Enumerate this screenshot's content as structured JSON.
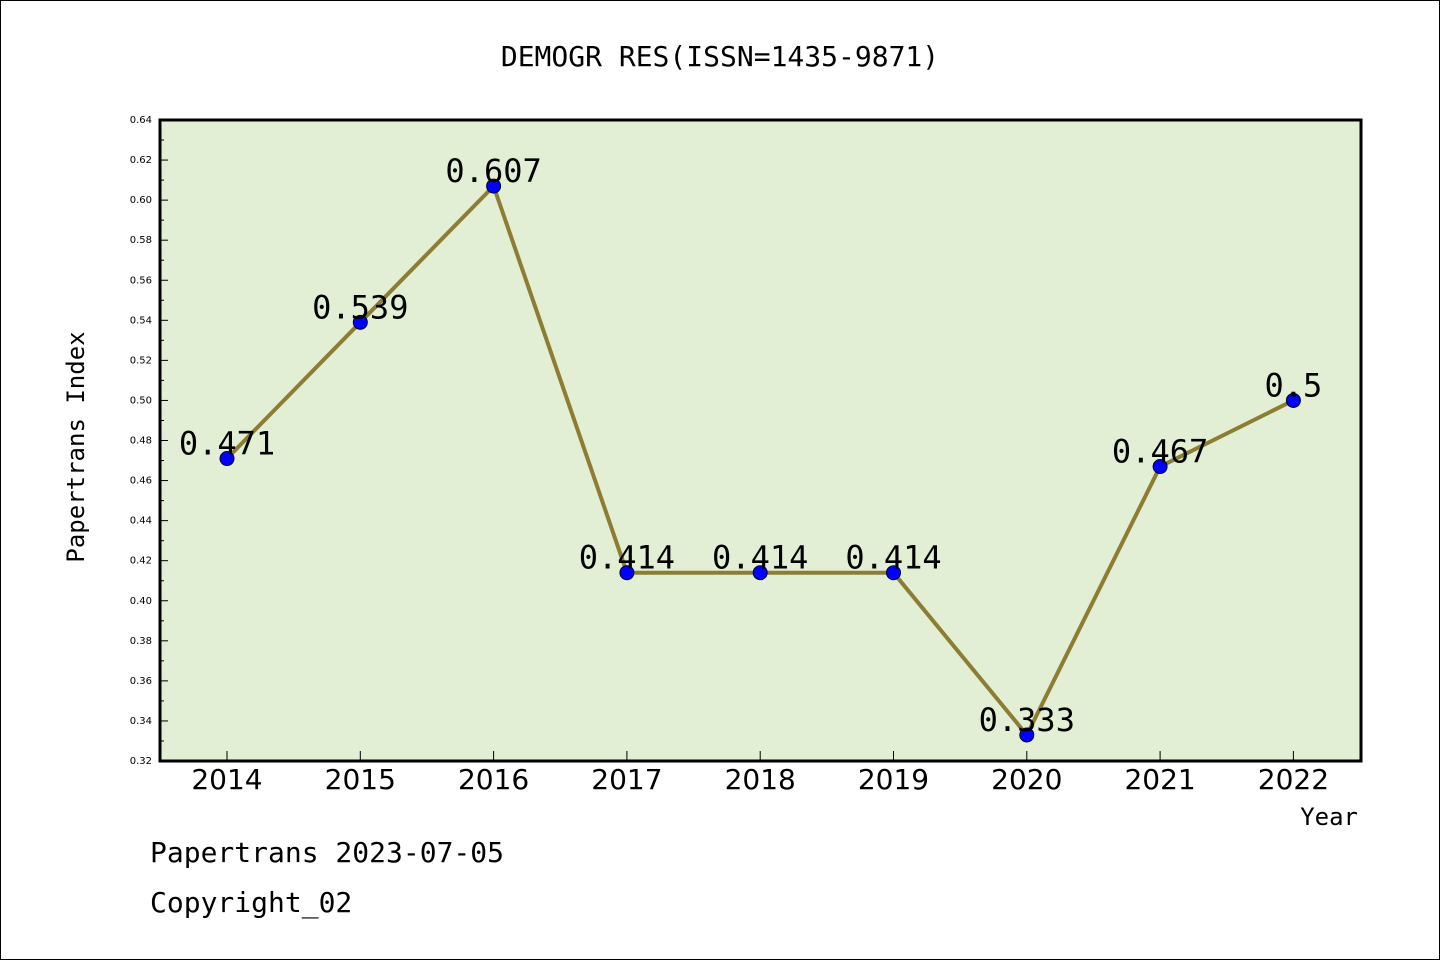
{
  "chart_data": {
    "type": "line",
    "title": "DEMOGR RES(ISSN=1435-9871)",
    "xlabel": "Year",
    "ylabel": "Papertrans Index",
    "categories": [
      "2014",
      "2015",
      "2016",
      "2017",
      "2018",
      "2019",
      "2020",
      "2021",
      "2022"
    ],
    "series": [
      {
        "values": [
          0.471,
          0.539,
          0.607,
          0.414,
          0.414,
          0.414,
          0.333,
          0.467,
          0.5
        ]
      }
    ],
    "data_labels": [
      "0.471",
      "0.539",
      "0.607",
      "0.414",
      "0.414",
      "0.414",
      "0.333",
      "0.467",
      "0.5"
    ],
    "ylim": [
      0.32,
      0.64
    ],
    "yticks": [
      "0.32",
      "0.34",
      "0.36",
      "0.38",
      "0.40",
      "0.42",
      "0.44",
      "0.46",
      "0.48",
      "0.50",
      "0.52",
      "0.54",
      "0.56",
      "0.58",
      "0.60",
      "0.62",
      "0.64"
    ],
    "grid": false,
    "colors": {
      "plot_background": "#e2efd5",
      "line": "#8c7d33",
      "marker": "#0000ff"
    }
  },
  "footer": {
    "date_line": "Papertrans 2023-07-05",
    "copyright": "Copyright_02"
  }
}
